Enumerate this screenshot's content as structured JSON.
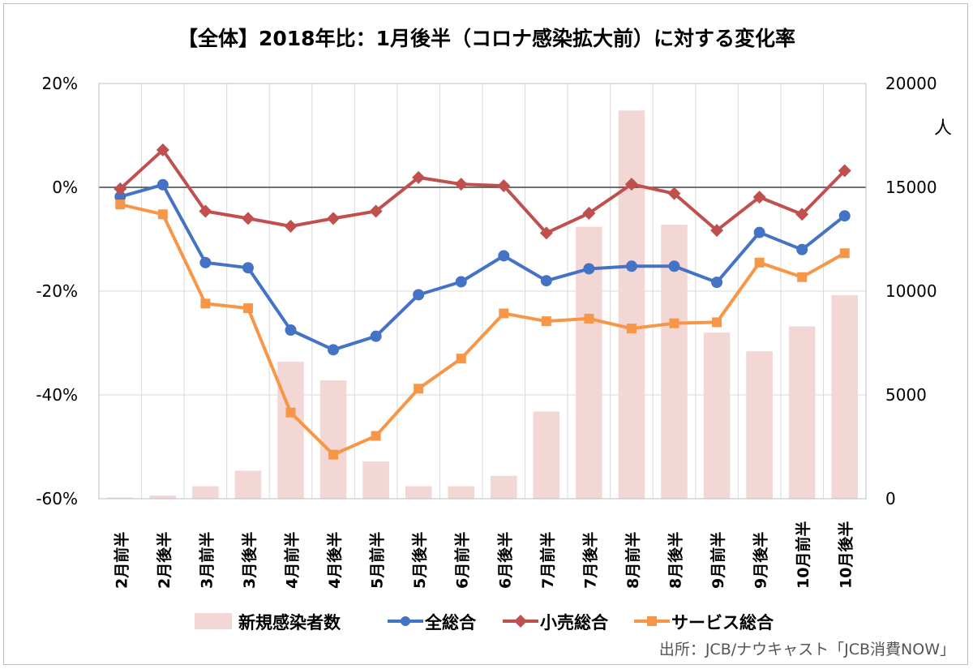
{
  "chart_data": {
    "type": "line",
    "title": "【全体】2018年比：1月後半（コロナ感染拡大前）に対する変化率",
    "categories": [
      "2月前半",
      "2月後半",
      "3月前半",
      "3月後半",
      "4月前半",
      "4月後半",
      "5月前半",
      "5月後半",
      "6月前半",
      "6月後半",
      "7月前半",
      "7月後半",
      "8月前半",
      "8月後半",
      "9月前半",
      "9月後半",
      "10月前半",
      "10月後半"
    ],
    "y_left": {
      "ticks": [
        "20%",
        "0%",
        "-20%",
        "-40%",
        "-60%"
      ],
      "range": [
        -60,
        20
      ]
    },
    "y_right": {
      "ticks": [
        "20000",
        "15000",
        "10000",
        "5000",
        "0"
      ],
      "range": [
        0,
        20000
      ],
      "label": "人"
    },
    "bars": {
      "name": "新規感染者数",
      "color": "#f2d7d5",
      "values": [
        60,
        150,
        600,
        1350,
        6600,
        5700,
        1800,
        600,
        600,
        1100,
        4200,
        13100,
        18700,
        13200,
        8000,
        7100,
        8300,
        9800
      ]
    },
    "series": [
      {
        "name": "全総合",
        "color": "#4472c4",
        "marker": "circle",
        "values": [
          -1.8,
          0.5,
          -14.5,
          -15.5,
          -27.5,
          -31.3,
          -28.7,
          -20.7,
          -18.2,
          -13.2,
          -18.0,
          -15.7,
          -15.2,
          -15.2,
          -18.3,
          -8.7,
          -12.0,
          -5.5
        ]
      },
      {
        "name": "小売総合",
        "color": "#c0504d",
        "marker": "diamond",
        "values": [
          -0.3,
          7.2,
          -4.6,
          -6.0,
          -7.5,
          -6.0,
          -4.6,
          1.9,
          0.6,
          0.3,
          -8.8,
          -5.0,
          0.6,
          -1.2,
          -8.3,
          -1.9,
          -5.2,
          3.2
        ]
      },
      {
        "name": "サービス総合",
        "color": "#f79646",
        "marker": "square",
        "values": [
          -3.3,
          -5.2,
          -22.4,
          -23.3,
          -43.4,
          -51.5,
          -47.9,
          -38.8,
          -33.0,
          -24.3,
          -25.8,
          -25.3,
          -27.2,
          -26.2,
          -26.0,
          -14.5,
          -17.3,
          -12.7
        ]
      }
    ],
    "grid": true,
    "legend_position": "bottom"
  },
  "source_text": "出所：JCB/ナウキャスト「JCB消費NOW」"
}
